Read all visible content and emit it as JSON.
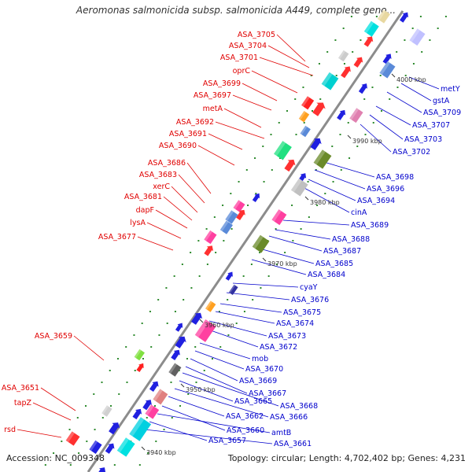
{
  "title": "Aeromonas salmonicida subsp. salmonicida A449, complete geno...",
  "footer": {
    "accession": "Accession: NC_009348",
    "info": "Topology: circular; Length: 4,702,402 bp; Genes: 4,231"
  },
  "ticks": [
    "4000 kbp",
    "3990 kbp",
    "3980 kbp",
    "3970 kbp",
    "3960 kbp",
    "3950 kbp",
    "3940 kbp"
  ],
  "left_labels": [
    "ASA_3705",
    "ASA_3704",
    "ASA_3701",
    "oprC",
    "ASA_3699",
    "ASA_3697",
    "metA",
    "ASA_3692",
    "ASA_3691",
    "ASA_3690",
    "ASA_3686",
    "ASA_3683",
    "xerC",
    "ASA_3681",
    "dapF",
    "lysA",
    "ASA_3677",
    "ASA_3659",
    "ASA_3651",
    "tapZ",
    "rsd"
  ],
  "right_labels": [
    "metY",
    "gstA",
    "ASA_3709",
    "ASA_3707",
    "ASA_3703",
    "ASA_3702",
    "ASA_3698",
    "ASA_3696",
    "ASA_3694",
    "cinA",
    "ASA_3689",
    "ASA_3688",
    "ASA_3687",
    "ASA_3685",
    "ASA_3684",
    "cyaY",
    "ASA_3676",
    "ASA_3675",
    "ASA_3674",
    "ASA_3673",
    "ASA_3672",
    "mob",
    "ASA_3670",
    "ASA_3669",
    "ASA_3667",
    "ASA_3668",
    "ASA_3665",
    "ASA_3666",
    "ASA_3662",
    "ASA_3660",
    "amtB",
    "ASA_3657",
    "ASA_3661"
  ],
  "colors": {
    "forward_label": "#e00000",
    "reverse_label": "#0000cc",
    "backbone": "#8c8c8c"
  }
}
